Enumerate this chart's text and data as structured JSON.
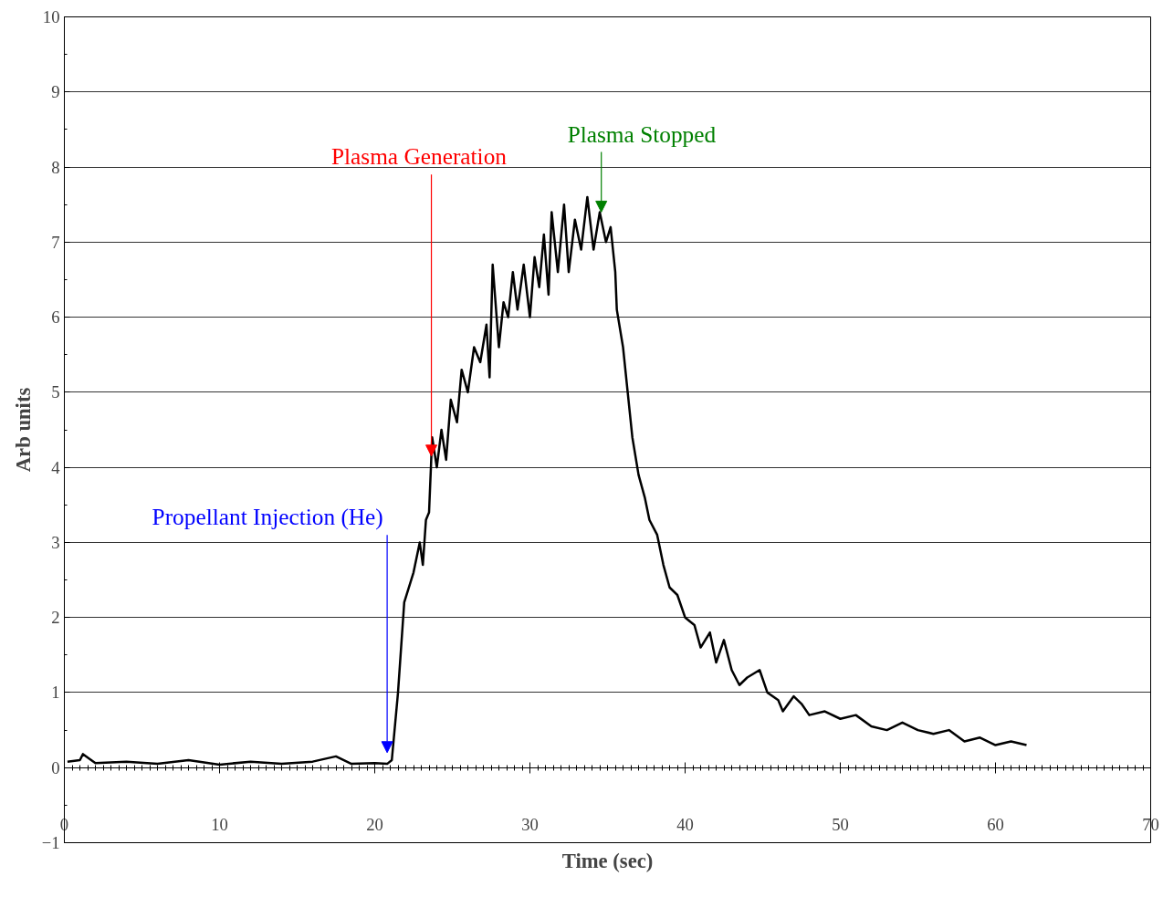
{
  "chart_data": {
    "type": "line",
    "xlabel": "Time (sec)",
    "ylabel": "Arb units",
    "xlim": [
      0,
      70
    ],
    "ylim": [
      -1,
      10
    ],
    "xticks": [
      0,
      10,
      20,
      30,
      40,
      50,
      60,
      70
    ],
    "yticks": [
      -1,
      0,
      1,
      2,
      3,
      4,
      5,
      6,
      7,
      8,
      9,
      10
    ],
    "grid": "y",
    "marker": "none",
    "line_style": "solid",
    "series": [
      {
        "color": "#000000",
        "x": [
          0.2,
          1,
          1.2,
          2,
          4,
          6,
          8,
          10,
          12,
          14,
          16,
          17.5,
          18.5,
          20,
          20.8,
          21.1,
          21.5,
          21.9,
          22.5,
          22.9,
          23.1,
          23.3,
          23.5,
          23.7,
          24.0,
          24.3,
          24.6,
          24.9,
          25.3,
          25.6,
          26,
          26.4,
          26.8,
          27.2,
          27.4,
          27.6,
          28,
          28.3,
          28.6,
          28.9,
          29.2,
          29.6,
          30,
          30.3,
          30.6,
          30.9,
          31.2,
          31.4,
          31.8,
          32.2,
          32.5,
          32.9,
          33.3,
          33.7,
          34.1,
          34.5,
          34.9,
          35.2,
          35.5,
          35.6,
          36.0,
          36.3,
          36.6,
          37.0,
          37.4,
          37.7,
          38.2,
          38.6,
          39,
          39.5,
          40.0,
          40.6,
          41,
          41.6,
          42,
          42.5,
          43,
          43.5,
          44,
          44.8,
          45.3,
          46,
          46.3,
          47,
          47.5,
          48,
          49,
          50,
          51,
          52,
          53,
          54,
          55,
          56,
          57,
          58,
          59,
          60,
          61,
          62
        ],
        "values": [
          0.08,
          0.1,
          0.18,
          0.06,
          0.08,
          0.05,
          0.1,
          0.04,
          0.08,
          0.05,
          0.08,
          0.15,
          0.05,
          0.06,
          0.05,
          0.1,
          1.0,
          2.2,
          2.6,
          3.0,
          2.7,
          3.3,
          3.4,
          4.4,
          4.0,
          4.5,
          4.1,
          4.9,
          4.6,
          5.3,
          5.0,
          5.6,
          5.4,
          5.9,
          5.2,
          6.7,
          5.6,
          6.2,
          6.0,
          6.6,
          6.1,
          6.7,
          6.0,
          6.8,
          6.4,
          7.1,
          6.3,
          7.4,
          6.6,
          7.5,
          6.6,
          7.3,
          6.9,
          7.6,
          6.9,
          7.4,
          7.0,
          7.2,
          6.6,
          6.1,
          5.6,
          5.0,
          4.4,
          3.9,
          3.6,
          3.3,
          3.1,
          2.7,
          2.4,
          2.3,
          2.0,
          1.9,
          1.6,
          1.8,
          1.4,
          1.7,
          1.3,
          1.1,
          1.2,
          1.3,
          1.0,
          0.9,
          0.75,
          0.95,
          0.85,
          0.7,
          0.75,
          0.65,
          0.7,
          0.55,
          0.5,
          0.6,
          0.5,
          0.45,
          0.5,
          0.35,
          0.4,
          0.3,
          0.35,
          0.3
        ]
      }
    ],
    "annotations": [
      {
        "text": "Propellant Injection (He)",
        "x": 20.8,
        "y": 0.2
      },
      {
        "text": "Plasma Generation",
        "x": 23.65,
        "y": 4.15
      },
      {
        "text": "Plasma Stopped",
        "x": 34.6,
        "y": 7.4
      }
    ]
  }
}
